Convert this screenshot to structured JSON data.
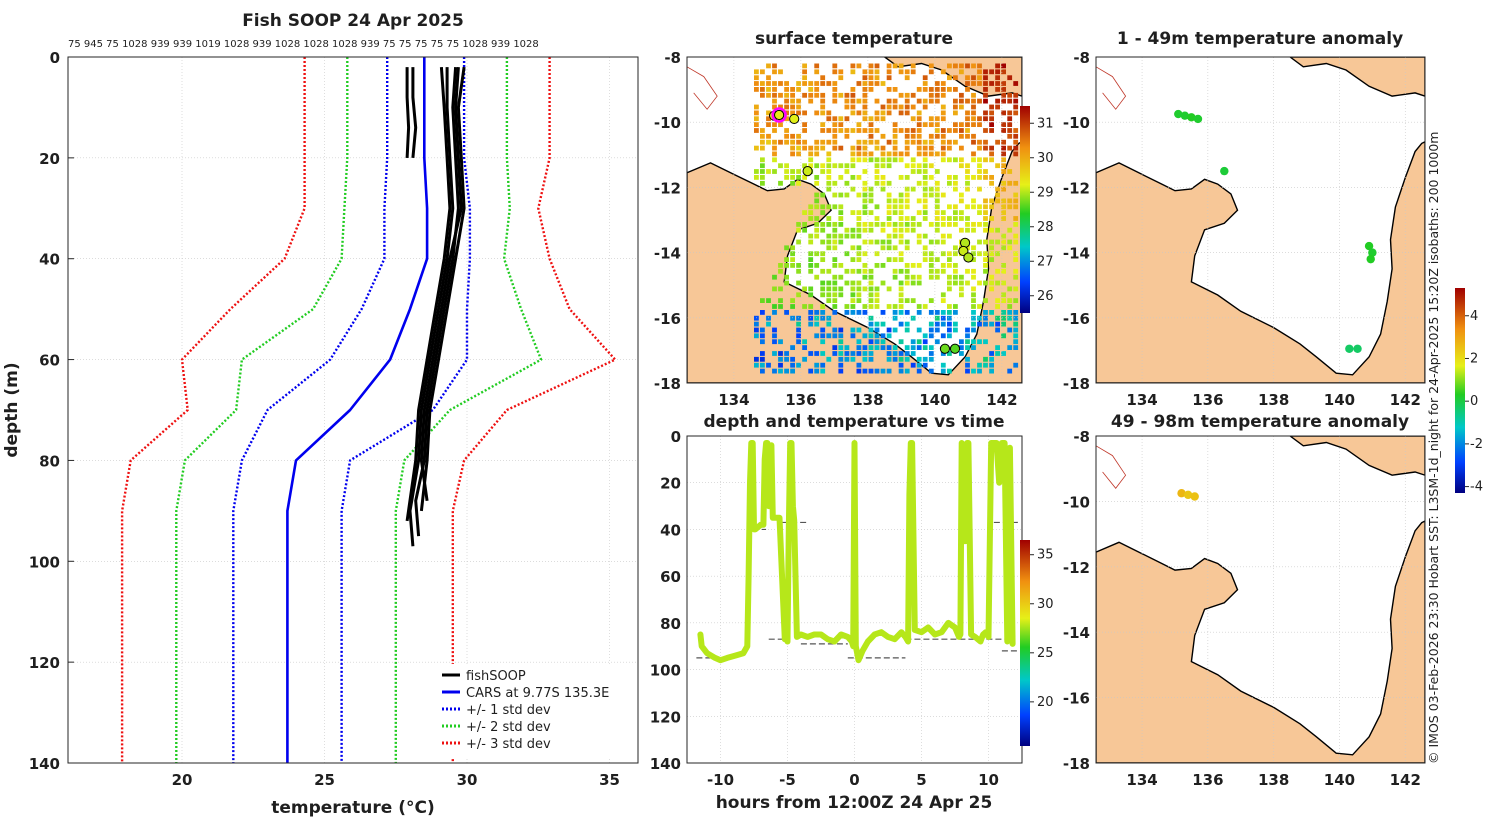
{
  "figure_title": "Fish SOOP 24 Apr 2025",
  "credit": "© IMOS 03-Feb-2026 23:30 Hobart SST: L3SM-1d_night for 24-Apr-2025 15:20Z isobaths: 200  1000m",
  "colors": {
    "land": "#f7c797",
    "fishsoop": "#000000",
    "cars": "#0000ee",
    "std1": "#0000ee",
    "std2": "#22cc22",
    "std3": "#ee1111",
    "grid": "#c8c8c8",
    "trace": "#d9ee2a",
    "marker_fill": "#d9ee2a",
    "highlight": "#ff00ff"
  },
  "chart_data": [
    {
      "id": "profile",
      "type": "line",
      "title": "Fish SOOP 24 Apr 2025",
      "top_labels": "75 945 75 1028 939 939 1019 1028 939 1028 1028 1028 939 75 75 75 75 75 1028 939 1028",
      "xlabel": "temperature (°C)",
      "ylabel": "depth (m)",
      "xlim": [
        16,
        36
      ],
      "ylim": [
        140,
        0
      ],
      "xticks": [
        20,
        25,
        30,
        35
      ],
      "yticks": [
        0,
        20,
        40,
        60,
        80,
        100,
        120,
        140
      ],
      "grid": true,
      "legend_position": "bottom-right",
      "legend": [
        "fishSOOP",
        "CARS at 9.77S 135.3E",
        "+/- 1 std dev",
        "+/- 2 std dev",
        "+/- 3 std dev"
      ],
      "depths": [
        0,
        10,
        20,
        30,
        40,
        50,
        60,
        70,
        80,
        90,
        100,
        125,
        140
      ],
      "cars_mean": [
        28.5,
        28.5,
        28.5,
        28.6,
        28.6,
        28.0,
        27.3,
        25.9,
        24.0,
        23.7,
        23.7,
        23.7,
        23.7
      ],
      "std1_low": [
        27.2,
        27.2,
        27.2,
        27.1,
        27.1,
        26.3,
        25.2,
        23.0,
        22.1,
        21.8,
        21.8,
        21.8,
        21.8
      ],
      "std1_high": [
        29.9,
        29.9,
        29.9,
        30.1,
        30.1,
        30.0,
        30.0,
        28.8,
        25.9,
        25.6,
        25.6,
        25.6,
        25.6
      ],
      "std2_low": [
        25.8,
        25.8,
        25.8,
        25.7,
        25.6,
        24.6,
        22.1,
        21.9,
        20.1,
        19.8,
        19.8,
        19.8,
        19.8
      ],
      "std2_high": [
        31.4,
        31.4,
        31.4,
        31.5,
        31.3,
        31.9,
        32.6,
        29.4,
        27.8,
        27.5,
        27.5,
        27.5,
        27.5
      ],
      "std3_low": [
        24.3,
        24.3,
        24.3,
        24.3,
        23.6,
        21.7,
        20.0,
        20.2,
        18.2,
        17.9,
        17.9,
        17.9,
        17.9
      ],
      "std3_high": [
        32.9,
        32.9,
        32.9,
        32.5,
        32.9,
        33.6,
        35.2,
        31.4,
        29.9,
        29.5,
        29.5,
        29.5,
        29.5
      ],
      "fishsoop_profiles": [
        {
          "depth": [
            2,
            8,
            14,
            20
          ],
          "temp": [
            28.1,
            28.1,
            28.2,
            28.1
          ]
        },
        {
          "depth": [
            2,
            8,
            14,
            20
          ],
          "temp": [
            27.9,
            27.9,
            27.95,
            27.9
          ]
        },
        {
          "depth": [
            2,
            10,
            20,
            30,
            40,
            50,
            60,
            70,
            80,
            88,
            95
          ],
          "temp": [
            29.6,
            29.5,
            29.6,
            29.7,
            29.5,
            29.2,
            28.9,
            28.6,
            28.5,
            28.2,
            28.3
          ]
        },
        {
          "depth": [
            2,
            10,
            20,
            30,
            40,
            50,
            60,
            70,
            80,
            90,
            97
          ],
          "temp": [
            29.3,
            29.3,
            29.4,
            29.5,
            29.3,
            29.0,
            28.7,
            28.4,
            28.3,
            28.0,
            28.1
          ]
        },
        {
          "depth": [
            2,
            10,
            20,
            30,
            40,
            50,
            60,
            70,
            80,
            90
          ],
          "temp": [
            29.9,
            29.7,
            29.8,
            29.9,
            29.6,
            29.3,
            29.0,
            28.7,
            28.6,
            28.4
          ]
        },
        {
          "depth": [
            2,
            10,
            20,
            30,
            40,
            50,
            60,
            70,
            80,
            92
          ],
          "temp": [
            29.1,
            29.2,
            29.3,
            29.4,
            29.2,
            28.9,
            28.6,
            28.3,
            28.2,
            27.9
          ]
        },
        {
          "depth": [
            2,
            10,
            20,
            30,
            40,
            50,
            60,
            70,
            80,
            88
          ],
          "temp": [
            29.7,
            29.6,
            29.7,
            29.8,
            29.4,
            29.1,
            28.8,
            28.5,
            28.4,
            28.6
          ]
        }
      ]
    },
    {
      "id": "surface-map",
      "type": "heatmap",
      "title": "surface temperature",
      "xlim": [
        132.6,
        142.6
      ],
      "ylim": [
        -18,
        -8
      ],
      "xticks": [
        134,
        136,
        138,
        140,
        142
      ],
      "yticks": [
        -8,
        -10,
        -12,
        -14,
        -16,
        -18
      ],
      "colorbar": {
        "min": 25.5,
        "max": 31.5,
        "ticks": [
          26,
          27,
          28,
          29,
          30,
          31
        ]
      },
      "points": [
        {
          "lon": 135.2,
          "lat": -9.8,
          "value": 29.2
        },
        {
          "lon": 135.35,
          "lat": -9.78,
          "value": 29.3,
          "highlight": true
        },
        {
          "lon": 135.8,
          "lat": -9.9,
          "value": 29.2
        },
        {
          "lon": 136.2,
          "lat": -11.5,
          "value": 29.1
        },
        {
          "lon": 140.9,
          "lat": -13.7,
          "value": 29.0
        },
        {
          "lon": 140.85,
          "lat": -13.95,
          "value": 29.1
        },
        {
          "lon": 141.0,
          "lat": -14.15,
          "value": 29.0
        },
        {
          "lon": 140.3,
          "lat": -16.95,
          "value": 28.7
        },
        {
          "lon": 140.6,
          "lat": -16.95,
          "value": 28.6
        }
      ]
    },
    {
      "id": "anomaly-upper",
      "type": "scatter",
      "title": "1 - 49m temperature anomaly",
      "xlim": [
        132.6,
        142.6
      ],
      "ylim": [
        -18,
        -8
      ],
      "xticks": [
        134,
        136,
        138,
        140,
        142
      ],
      "yticks": [
        -8,
        -10,
        -12,
        -14,
        -16,
        -18
      ],
      "colorbar": {
        "min": -4.3,
        "max": 5.3,
        "ticks": [
          -4,
          -2,
          0,
          2,
          4
        ]
      },
      "points": [
        {
          "lon": 135.1,
          "lat": -9.75,
          "value": 0.2
        },
        {
          "lon": 135.3,
          "lat": -9.8,
          "value": 0.2
        },
        {
          "lon": 135.5,
          "lat": -9.85,
          "value": 0.3
        },
        {
          "lon": 135.7,
          "lat": -9.9,
          "value": 0.2
        },
        {
          "lon": 136.5,
          "lat": -11.5,
          "value": 0.1
        },
        {
          "lon": 140.9,
          "lat": -13.8,
          "value": 0.3
        },
        {
          "lon": 141.0,
          "lat": -14.0,
          "value": 0.2
        },
        {
          "lon": 140.95,
          "lat": -14.2,
          "value": 0.3
        },
        {
          "lon": 140.3,
          "lat": -16.95,
          "value": -0.3
        },
        {
          "lon": 140.55,
          "lat": -16.95,
          "value": -0.3
        }
      ]
    },
    {
      "id": "anomaly-lower",
      "type": "scatter",
      "title": "49 - 98m temperature anomaly",
      "xlim": [
        132.6,
        142.6
      ],
      "ylim": [
        -18,
        -8
      ],
      "xticks": [
        134,
        136,
        138,
        140,
        142
      ],
      "yticks": [
        -8,
        -10,
        -12,
        -14,
        -16,
        -18
      ],
      "points": [
        {
          "lon": 135.2,
          "lat": -9.75,
          "value": 2.7
        },
        {
          "lon": 135.4,
          "lat": -9.8,
          "value": 2.4
        },
        {
          "lon": 135.6,
          "lat": -9.85,
          "value": 2.5
        }
      ]
    },
    {
      "id": "depth-time",
      "type": "line",
      "title": "depth and temperature vs time",
      "xlabel": "hours from 12:00Z 24 Apr 25",
      "xlim": [
        -12.5,
        12.5
      ],
      "ylim": [
        140,
        0
      ],
      "xticks": [
        -10,
        -5,
        0,
        5,
        10
      ],
      "yticks": [
        0,
        20,
        40,
        60,
        80,
        100,
        120,
        140
      ],
      "colorbar": {
        "min": 15.5,
        "max": 36.5,
        "ticks": [
          20,
          25,
          30,
          35
        ]
      },
      "temperature": 27.8,
      "trace_hours": [
        -11.5,
        -11.4,
        -11.0,
        -10.4,
        -10.0,
        -9.5,
        -8.9,
        -8.3,
        -8.0,
        -7.9,
        -7.8,
        -7.7,
        -7.6,
        -7.5,
        -7.4,
        -7.0,
        -6.8,
        -6.7,
        -6.6,
        -6.5,
        -6.4,
        -6.3,
        -6.2,
        -6.1,
        -5.6,
        -5.2,
        -5.1,
        -5.0,
        -4.9,
        -4.8,
        -4.7,
        -4.6,
        -4.5,
        -4.3,
        -4.0,
        -3.5,
        -3.0,
        -2.5,
        -2.0,
        -1.5,
        -1.0,
        -0.5,
        -0.2,
        -0.1,
        0.0,
        0.1,
        0.3,
        0.6,
        1.0,
        1.5,
        2.0,
        2.5,
        3.0,
        3.5,
        3.8,
        4.0,
        4.1,
        4.2,
        4.3,
        4.5,
        5.0,
        5.5,
        6.0,
        6.5,
        7.0,
        7.5,
        7.8,
        7.9,
        8.0,
        8.1,
        8.2,
        8.3,
        8.4,
        8.5,
        8.7,
        9.0,
        9.2,
        9.4,
        9.6,
        9.8,
        10.0,
        10.2,
        10.4,
        10.6,
        10.8,
        11.0,
        11.2,
        11.4,
        11.6,
        11.8
      ],
      "trace_depths": [
        85,
        90,
        93,
        95,
        96,
        95,
        94,
        93,
        90,
        60,
        20,
        3,
        3,
        40,
        40,
        38,
        38,
        10,
        3,
        3,
        30,
        30,
        4,
        35,
        35,
        87,
        86,
        88,
        40,
        3,
        3,
        30,
        36,
        86,
        85,
        86,
        85,
        85,
        87,
        88,
        85,
        86,
        88,
        90,
        3,
        90,
        96,
        92,
        88,
        85,
        84,
        86,
        87,
        84,
        86,
        88,
        25,
        3,
        3,
        83,
        84,
        82,
        85,
        84,
        80,
        82,
        86,
        85,
        3,
        25,
        45,
        45,
        3,
        3,
        85,
        86,
        87,
        88,
        85,
        84,
        86,
        3,
        3,
        3,
        20,
        3,
        3,
        88,
        5,
        89
      ],
      "reference_segments": [
        {
          "hours": [
            -11.8,
            -9.0
          ],
          "depth": 95
        },
        {
          "hours": [
            -7.6,
            -6.6
          ],
          "depth": 40
        },
        {
          "hours": [
            -6.4,
            -5.2
          ],
          "depth": 87
        },
        {
          "hours": [
            -5.4,
            -3.5
          ],
          "depth": 37
        },
        {
          "hours": [
            -4.0,
            -0.5
          ],
          "depth": 89
        },
        {
          "hours": [
            -0.5,
            3.8
          ],
          "depth": 95
        },
        {
          "hours": [
            3.8,
            11.8
          ],
          "depth": 87
        },
        {
          "hours": [
            8.0,
            8.8
          ],
          "depth": 45
        },
        {
          "hours": [
            10.4,
            12.3
          ],
          "depth": 37
        },
        {
          "hours": [
            11.0,
            12.3
          ],
          "depth": 92
        }
      ]
    }
  ]
}
